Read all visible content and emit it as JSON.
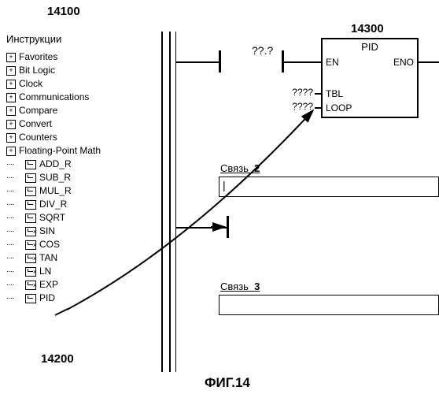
{
  "figure": {
    "topLabel": "14100",
    "treeLabel": "14200",
    "blockLabel": "14300",
    "caption": "ФИГ.14"
  },
  "tree": {
    "header": "Инструкции",
    "folders": [
      "Favorites",
      "Bit Logic",
      "Clock",
      "Communications",
      "Compare",
      "Convert",
      "Counters",
      "Floating-Point Math"
    ],
    "leaves": [
      {
        "label": "ADD_R",
        "x": false
      },
      {
        "label": "SUB_R",
        "x": false
      },
      {
        "label": "MUL_R",
        "x": false
      },
      {
        "label": "DIV_R",
        "x": false
      },
      {
        "label": "SQRT",
        "x": false
      },
      {
        "label": "SIN",
        "x": true
      },
      {
        "label": "COS",
        "x": true
      },
      {
        "label": "TAN",
        "x": true
      },
      {
        "label": "LN",
        "x": true
      },
      {
        "label": "EXP",
        "x": true
      },
      {
        "label": "PID",
        "x": false
      }
    ]
  },
  "contact": {
    "label": "??.?"
  },
  "block": {
    "title": "PID",
    "pins": {
      "en": "EN",
      "eno": "ENO",
      "tbl": "TBL",
      "loop": "LOOP"
    },
    "inValues": {
      "tbl": "????",
      "loop": "????"
    }
  },
  "networks": {
    "n2": "Связь",
    "n2num": "2",
    "n3": "Связь",
    "n3num": "3"
  },
  "colors": {
    "line": "#000000",
    "bg": "#ffffff"
  }
}
